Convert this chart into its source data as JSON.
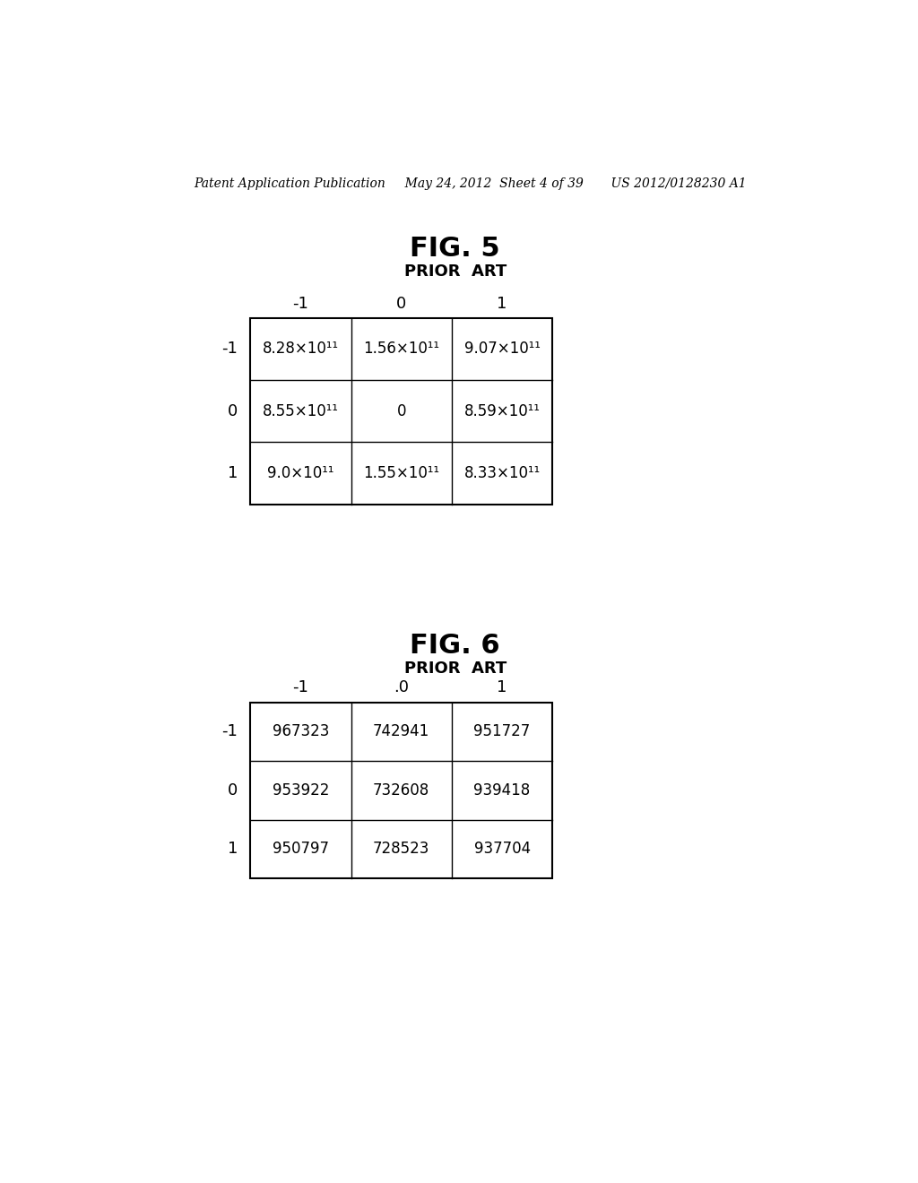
{
  "background_color": "#ffffff",
  "header_text": "Patent Application Publication     May 24, 2012  Sheet 4 of 39       US 2012/0128230 A1",
  "header_fontsize": 10,
  "fig5_title": "FIG. 5",
  "fig5_subtitle": "PRIOR  ART",
  "fig5_title_fontsize": 22,
  "fig5_subtitle_fontsize": 13,
  "fig5_col_headers": [
    "-1",
    "0",
    "1"
  ],
  "fig5_row_headers": [
    "-1",
    "0",
    "1"
  ],
  "fig5_data": [
    [
      "8.28×10¹¹",
      "1.56×10¹¹",
      "9.07×10¹¹"
    ],
    [
      "8.55×10¹¹",
      "0",
      "8.59×10¹¹"
    ],
    [
      "9.0×10¹¹",
      "1.55×10¹¹",
      "8.33×10¹¹"
    ]
  ],
  "fig5_cell_fontsize": 12,
  "fig5_header_fontsize": 13,
  "fig6_title": "FIG. 6",
  "fig6_subtitle": "PRIOR  ART",
  "fig6_title_fontsize": 22,
  "fig6_subtitle_fontsize": 13,
  "fig6_col_headers": [
    "-1",
    ".0",
    "1"
  ],
  "fig6_row_headers": [
    "-1",
    "0",
    "1"
  ],
  "fig6_data": [
    [
      "967323",
      "742941",
      "951727"
    ],
    [
      "953922",
      "732608",
      "939418"
    ],
    [
      "950797",
      "728523",
      "937704"
    ]
  ],
  "fig6_cell_fontsize": 12,
  "fig6_header_fontsize": 13,
  "table_line_color": "#000000",
  "text_color": "#000000"
}
